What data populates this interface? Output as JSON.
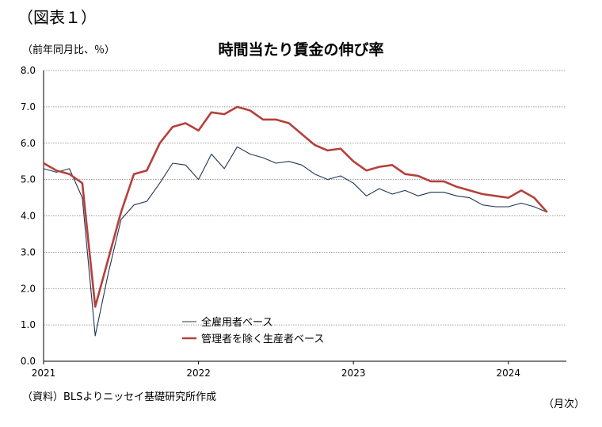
{
  "figure_label": "（図表１）",
  "unit_label": "（前年同月比、％）",
  "source_label": "（資料）BLSよりニッセイ基礎研究所作成",
  "x_unit_label": "（月次）",
  "colors": {
    "all_employees": "#1f3552",
    "nonsupervisory": "#b5403c",
    "grid": "#7f7f7f",
    "axis": "#000000"
  },
  "chart_data": {
    "type": "line",
    "title": "時間当たり賃金の伸び率",
    "xlabel": "",
    "ylabel": "（前年同月比、％）",
    "ylim": [
      0,
      8
    ],
    "yticks": [
      "0.0",
      "1.0",
      "2.0",
      "3.0",
      "4.0",
      "5.0",
      "6.0",
      "7.0",
      "8.0"
    ],
    "grid": true,
    "legend_position": "lower-left",
    "x_start": "2021-01",
    "x_end": "2024-04",
    "x_tick_labels": [
      {
        "label": "2021",
        "month": "2021-01"
      },
      {
        "label": "2022",
        "month": "2022-01"
      },
      {
        "label": "2023",
        "month": "2023-01"
      },
      {
        "label": "2024",
        "month": "2024-01"
      }
    ],
    "x": [
      "2021-01",
      "2021-02",
      "2021-03",
      "2021-04",
      "2021-05",
      "2021-06",
      "2021-07",
      "2021-08",
      "2021-09",
      "2021-10",
      "2021-11",
      "2021-12",
      "2022-01",
      "2022-02",
      "2022-03",
      "2022-04",
      "2022-05",
      "2022-06",
      "2022-07",
      "2022-08",
      "2022-09",
      "2022-10",
      "2022-11",
      "2022-12",
      "2023-01",
      "2023-02",
      "2023-03",
      "2023-04",
      "2023-05",
      "2023-06",
      "2023-07",
      "2023-08",
      "2023-09",
      "2023-10",
      "2023-11",
      "2023-12",
      "2024-01",
      "2024-02",
      "2024-03",
      "2024-04"
    ],
    "series": [
      {
        "name": "全雇用者ベース",
        "color": "#1f3552",
        "values": [
          5.3,
          5.2,
          5.3,
          4.5,
          0.7,
          2.4,
          3.9,
          4.3,
          4.4,
          4.9,
          5.45,
          5.4,
          5.0,
          5.7,
          5.3,
          5.9,
          5.7,
          5.6,
          5.45,
          5.5,
          5.4,
          5.15,
          5.0,
          5.1,
          4.9,
          4.55,
          4.75,
          4.6,
          4.7,
          4.55,
          4.65,
          4.65,
          4.55,
          4.5,
          4.3,
          4.25,
          4.25,
          4.35,
          4.25,
          4.1
        ]
      },
      {
        "name": "管理者を除く生産者ベース",
        "color": "#b5403c",
        "values": [
          5.45,
          5.25,
          5.15,
          4.9,
          1.5,
          2.8,
          4.1,
          5.15,
          5.25,
          6.0,
          6.45,
          6.55,
          6.35,
          6.85,
          6.8,
          7.0,
          6.9,
          6.65,
          6.65,
          6.55,
          6.25,
          5.95,
          5.8,
          5.85,
          5.5,
          5.25,
          5.35,
          5.4,
          5.15,
          5.1,
          4.95,
          4.95,
          4.8,
          4.7,
          4.6,
          4.55,
          4.5,
          4.7,
          4.5,
          4.1
        ]
      }
    ]
  }
}
